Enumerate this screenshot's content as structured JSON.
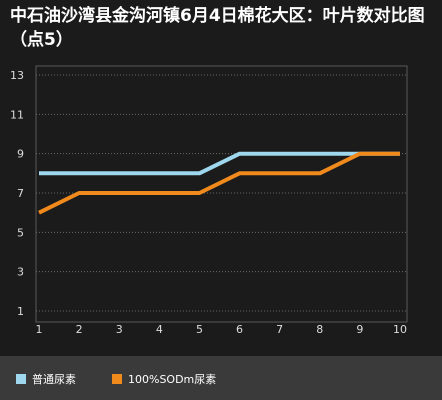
{
  "chart_data": {
    "type": "line",
    "title": "中石油沙湾县金沟河镇6月4日棉花大区：叶片数对比图（点5）",
    "x": [
      1,
      2,
      3,
      4,
      5,
      6,
      7,
      8,
      9,
      10
    ],
    "xlim": [
      1,
      10
    ],
    "ylim": [
      1,
      13
    ],
    "yticks": [
      1,
      3,
      5,
      7,
      9,
      11,
      13
    ],
    "xticks": [
      1,
      2,
      3,
      4,
      5,
      6,
      7,
      8,
      9,
      10
    ],
    "grid": true,
    "legend_position": "bottom",
    "series": [
      {
        "name": "普通尿素",
        "color": "#9fd7ee",
        "values": [
          8,
          8,
          8,
          8,
          8,
          9,
          9,
          9,
          9,
          9
        ]
      },
      {
        "name": "100%SODm尿素",
        "color": "#f08a1c",
        "values": [
          6,
          7,
          7,
          7,
          7,
          8,
          8,
          8,
          9,
          9
        ]
      }
    ]
  }
}
